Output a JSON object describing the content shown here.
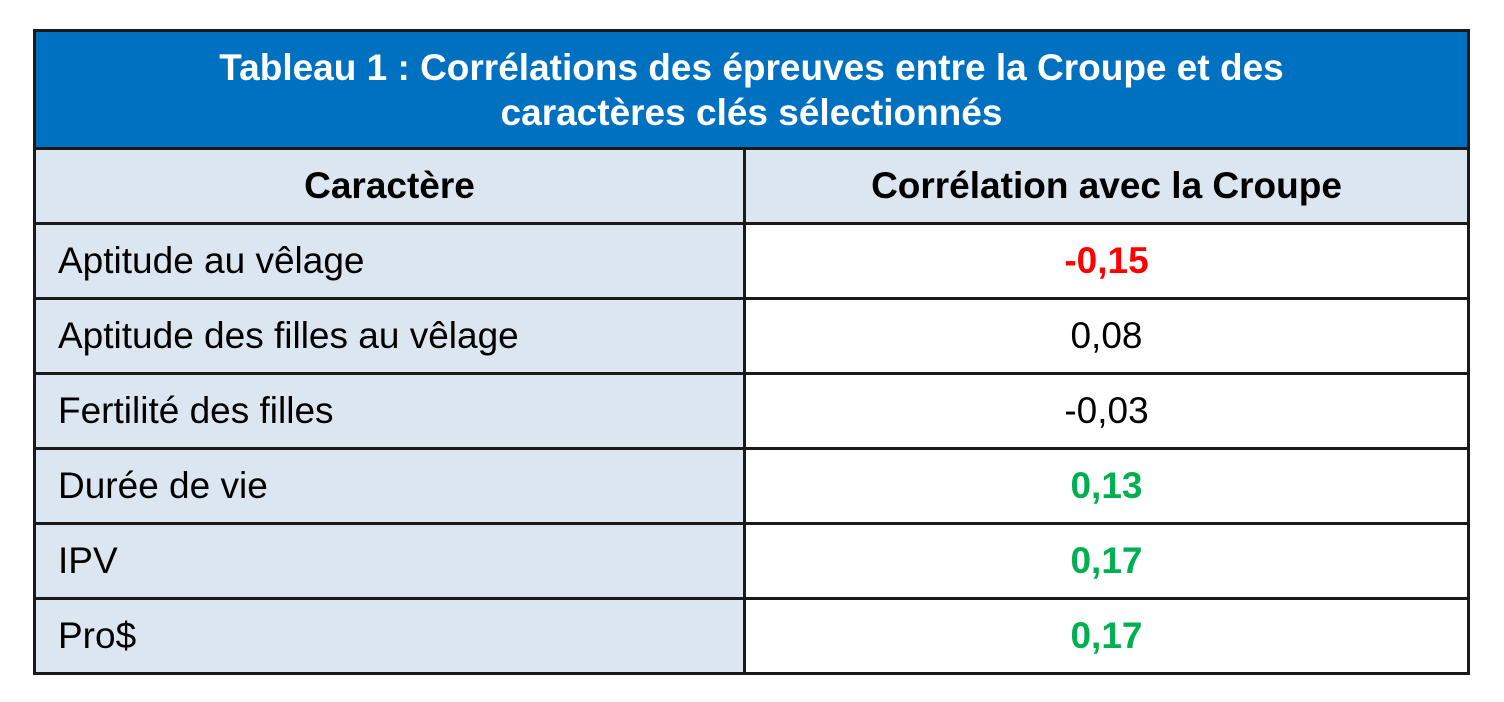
{
  "title": {
    "line1": "Tableau 1 : Corrélations des épreuves entre la Croupe et des",
    "line2": "caractères clés sélectionnés"
  },
  "headers": {
    "col1": "Caractère",
    "col2": "Corrélation avec la Croupe"
  },
  "rows": [
    {
      "trait": "Aptitude au vêlage",
      "value": "-0,15",
      "style": "negative"
    },
    {
      "trait": "Aptitude des filles au vêlage",
      "value": "0,08",
      "style": "neutral"
    },
    {
      "trait": "Fertilité des filles",
      "value": "-0,03",
      "style": "neutral"
    },
    {
      "trait": "Durée de vie",
      "value": "0,13",
      "style": "positive"
    },
    {
      "trait": "IPV",
      "value": "0,17",
      "style": "positive"
    },
    {
      "trait": "Pro$",
      "value": "0,17",
      "style": "positive"
    }
  ],
  "colors": {
    "title_bg": "#0070c0",
    "shade": "#dce6f1",
    "negative": "#ff0000",
    "positive": "#00b050"
  }
}
